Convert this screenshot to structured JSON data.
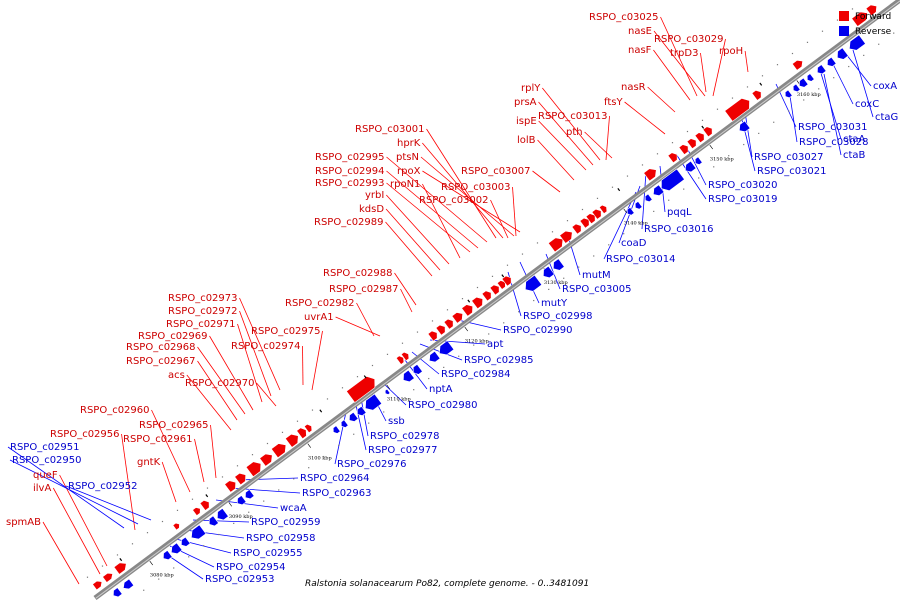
{
  "caption": "Ralstonia solanacearum Po82, complete genome. - 0..3481091",
  "legend": {
    "forward_label": "Forward",
    "reverse_label": "Reverse",
    "forward_color": "#ee0000",
    "reverse_color": "#0000ee"
  },
  "colors": {
    "forward_line": "#ff0000",
    "reverse_line": "#0000ff",
    "backbone": "#888888"
  },
  "ticks": [
    "3080 kbp",
    "3090 kbp",
    "3100 kbp",
    "3110 kbp",
    "3120 kbp",
    "3130 kbp",
    "3140 kbp",
    "3150 kbp",
    "3160 kbp"
  ],
  "forward_genes": [
    "RSPO_c03025",
    "nasE",
    "RSPO_c03029",
    "rpoH",
    "nasF",
    "trpD3",
    "nasR",
    "ftsY",
    "rplY",
    "prsA",
    "RSPO_c03013",
    "ispE",
    "pth",
    "lolB",
    "RSPO_c03001",
    "hprK",
    "RSPO_c02995",
    "ptsN",
    "RSPO_c02994",
    "rpoX",
    "RSPO_c03007",
    "RSPO_c02993",
    "rpoN1",
    "RSPO_c03003",
    "yrbI",
    "RSPO_c03002",
    "kdsD",
    "RSPO_c02989",
    "RSPO_c02988",
    "RSPO_c02987",
    "RSPO_c02973",
    "RSPO_c02982",
    "RSPO_c02972",
    "uvrA1",
    "RSPO_c02971",
    "RSPO_c02975",
    "RSPO_c02969",
    "RSPO_c02968",
    "RSPO_c02974",
    "RSPO_c02967",
    "acs",
    "RSPO_c02970",
    "RSPO_c02960",
    "RSPO_c02965",
    "RSPO_c02956",
    "RSPO_c02961",
    "gntK",
    "queF",
    "ilvA",
    "spmAB"
  ],
  "reverse_genes": [
    "coxA",
    "coxC",
    "ctaG",
    "RSPO_c03031",
    "ctaA",
    "RSPO_c03028",
    "ctaB",
    "RSPO_c03027",
    "RSPO_c03021",
    "RSPO_c03020",
    "RSPO_c03019",
    "pqqL",
    "RSPO_c03016",
    "coaD",
    "RSPO_c03014",
    "mutM",
    "RSPO_c03005",
    "mutY",
    "RSPO_c02998",
    "RSPO_c02990",
    "apt",
    "RSPO_c02985",
    "RSPO_c02984",
    "nptA",
    "RSPO_c02980",
    "ssb",
    "RSPO_c02978",
    "RSPO_c02977",
    "RSPO_c02976",
    "RSPO_c02964",
    "RSPO_c02963",
    "wcaA",
    "RSPO_c02959",
    "RSPO_c02958",
    "RSPO_c02955",
    "RSPO_c02954",
    "RSPO_c02953",
    "RSPO_c02951",
    "RSPO_c02950",
    "RSPO_c02952"
  ]
}
